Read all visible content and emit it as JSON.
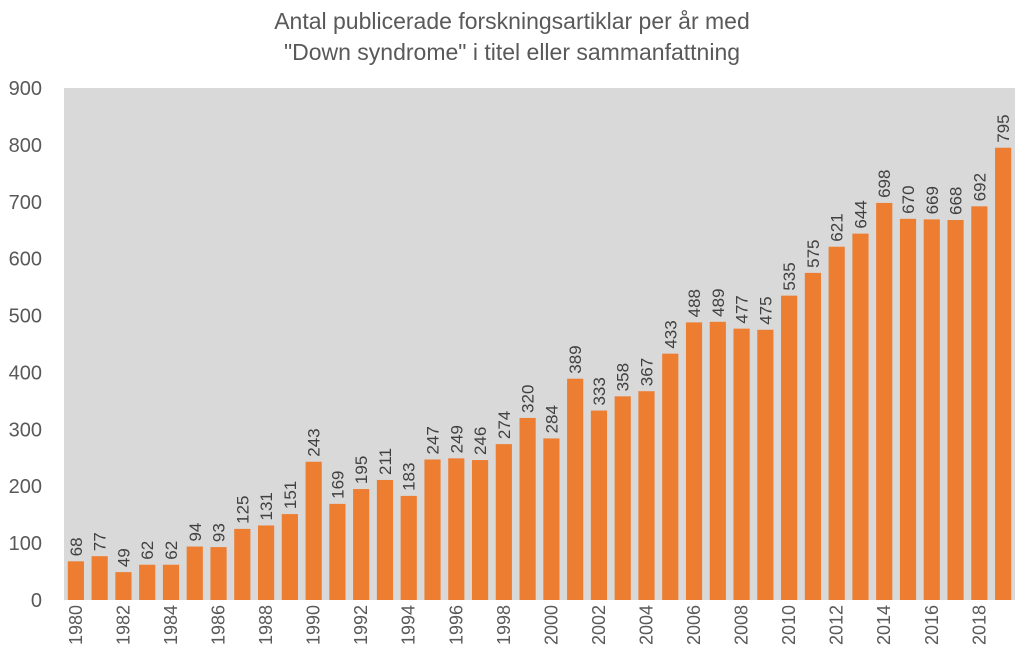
{
  "chart_data": {
    "type": "bar",
    "title_lines": [
      "Antal publicerade forskningsartiklar per år med",
      "\"Down syndrome\" i titel eller sammanfattning"
    ],
    "categories": [
      "1980",
      "1981",
      "1982",
      "1983",
      "1984",
      "1985",
      "1986",
      "1987",
      "1988",
      "1989",
      "1990",
      "1991",
      "1992",
      "1993",
      "1994",
      "1995",
      "1996",
      "1997",
      "1998",
      "1999",
      "2000",
      "2001",
      "2002",
      "2003",
      "2004",
      "2005",
      "2006",
      "2007",
      "2008",
      "2009",
      "2010",
      "2011",
      "2012",
      "2013",
      "2014",
      "2015",
      "2016",
      "2017",
      "2018",
      "2019"
    ],
    "x_tick_labels": [
      "1980",
      "",
      "1982",
      "",
      "1984",
      "",
      "1986",
      "",
      "1988",
      "",
      "1990",
      "",
      "1992",
      "",
      "1994",
      "",
      "1996",
      "",
      "1998",
      "",
      "2000",
      "",
      "2002",
      "",
      "2004",
      "",
      "2006",
      "",
      "2008",
      "",
      "2010",
      "",
      "2012",
      "",
      "2014",
      "",
      "2016",
      "",
      "2018",
      ""
    ],
    "values": [
      68,
      77,
      49,
      62,
      62,
      94,
      93,
      125,
      131,
      151,
      243,
      169,
      195,
      211,
      183,
      247,
      249,
      246,
      274,
      320,
      284,
      389,
      333,
      358,
      367,
      433,
      488,
      489,
      477,
      475,
      535,
      575,
      621,
      644,
      698,
      670,
      669,
      668,
      692,
      795
    ],
    "y_ticks": [
      0,
      100,
      200,
      300,
      400,
      500,
      600,
      700,
      800,
      900
    ],
    "ylim": [
      0,
      900
    ],
    "xlabel": "",
    "ylabel": "",
    "grid": false,
    "legend": "none",
    "data_labels": true,
    "colors": {
      "bar": "#ED7D31",
      "plot_background": "#D9D9D9",
      "text": "#595959"
    }
  }
}
